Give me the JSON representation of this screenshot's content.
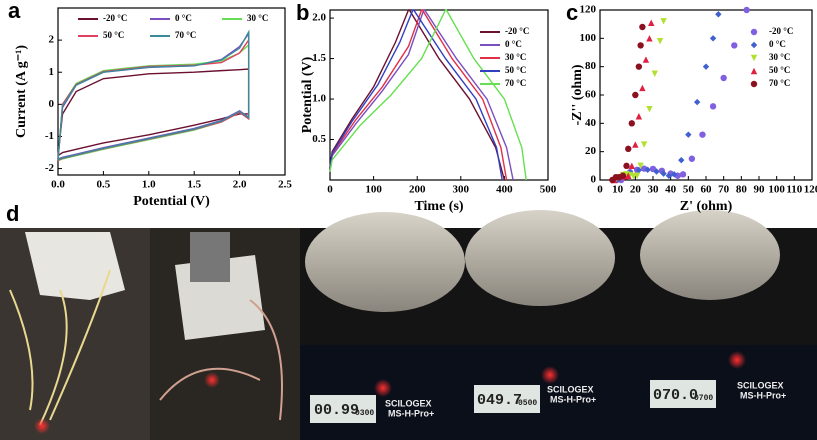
{
  "chart_data": [
    {
      "type": "line",
      "label": "a",
      "xlabel": "Potential (V)",
      "ylabel": "Current (A g⁻¹)",
      "xlim": [
        0,
        2.5
      ],
      "ylim": [
        -2.2,
        3
      ],
      "xticks": [
        {
          "value": 0,
          "label": "0.0"
        },
        0.5,
        {
          "value": 1,
          "label": "1.0"
        },
        1.5,
        {
          "value": 2,
          "label": "2.0"
        },
        2.5
      ],
      "yticks": [
        -2,
        -1,
        0,
        1,
        2
      ],
      "legend": "top",
      "legend_columns": 3,
      "x": [
        0,
        0.05,
        0.2,
        0.5,
        1.0,
        1.5,
        1.8,
        2.0,
        2.1,
        2.1,
        2.0,
        1.8,
        1.5,
        1.0,
        0.5,
        0.2,
        0.05,
        0
      ],
      "series": [
        {
          "name": "-20 °C",
          "color": "#6b1030",
          "values": [
            -1.6,
            -0.3,
            0.4,
            0.8,
            0.95,
            1.0,
            1.05,
            1.08,
            1.1,
            -0.3,
            -0.3,
            -0.45,
            -0.65,
            -0.95,
            -1.2,
            -1.4,
            -1.5,
            -1.6
          ]
        },
        {
          "name": "0 °C",
          "color": "#7a4fc0",
          "values": [
            -1.7,
            -0.1,
            0.6,
            1.0,
            1.15,
            1.2,
            1.4,
            1.8,
            2.2,
            -0.4,
            -0.2,
            -0.5,
            -0.75,
            -1.05,
            -1.35,
            -1.55,
            -1.65,
            -1.7
          ]
        },
        {
          "name": "30 °C",
          "color": "#66dd55",
          "values": [
            -1.75,
            0.0,
            0.65,
            1.05,
            1.2,
            1.25,
            1.35,
            1.6,
            1.85,
            -0.45,
            -0.25,
            -0.55,
            -0.8,
            -1.1,
            -1.4,
            -1.6,
            -1.7,
            -1.75
          ]
        },
        {
          "name": "50 °C",
          "color": "#e04060",
          "values": [
            -1.75,
            0.0,
            0.62,
            1.02,
            1.18,
            1.22,
            1.3,
            1.6,
            2.0,
            -0.45,
            -0.25,
            -0.55,
            -0.78,
            -1.08,
            -1.38,
            -1.58,
            -1.68,
            -1.75
          ]
        },
        {
          "name": "70 °C",
          "color": "#3a8a9a",
          "values": [
            -1.72,
            -0.05,
            0.6,
            1.0,
            1.16,
            1.2,
            1.38,
            1.75,
            2.25,
            -0.42,
            -0.22,
            -0.52,
            -0.77,
            -1.07,
            -1.37,
            -1.57,
            -1.67,
            -1.72
          ]
        }
      ]
    },
    {
      "type": "line",
      "label": "b",
      "xlabel": "Time (s)",
      "ylabel": "Potential (V)",
      "xlim": [
        0,
        500
      ],
      "ylim": [
        0,
        2.1
      ],
      "xticks": [
        0,
        100,
        200,
        300,
        400,
        500
      ],
      "yticks": [
        0.5,
        {
          "value": 1,
          "label": "1.0"
        },
        1.5,
        {
          "value": 2,
          "label": "2.0"
        }
      ],
      "legend": "right",
      "legend_columns": 1,
      "series": [
        {
          "name": "-20 °C",
          "color": "#6b1030",
          "x": [
            0,
            5,
            50,
            100,
            150,
            180,
            182,
            250,
            320,
            380,
            400
          ],
          "values": [
            0.15,
            0.35,
            0.75,
            1.15,
            1.7,
            2.1,
            2.1,
            1.5,
            1.0,
            0.4,
            0
          ]
        },
        {
          "name": "0 °C",
          "color": "#7a4fc0",
          "x": [
            0,
            5,
            60,
            120,
            180,
            215,
            217,
            290,
            360,
            405,
            420
          ],
          "values": [
            0.15,
            0.3,
            0.7,
            1.1,
            1.55,
            2.1,
            2.1,
            1.5,
            1.0,
            0.4,
            0
          ]
        },
        {
          "name": "30 °C",
          "color": "#e03048",
          "x": [
            0,
            5,
            60,
            120,
            180,
            210,
            212,
            280,
            350,
            392,
            405
          ],
          "values": [
            0.15,
            0.32,
            0.75,
            1.15,
            1.65,
            2.1,
            2.1,
            1.5,
            1.0,
            0.4,
            0
          ]
        },
        {
          "name": "50 °C",
          "color": "#3040c0",
          "x": [
            0,
            5,
            50,
            110,
            160,
            190,
            192,
            265,
            335,
            382,
            395
          ],
          "values": [
            0.15,
            0.33,
            0.72,
            1.18,
            1.7,
            2.1,
            2.1,
            1.5,
            1.0,
            0.4,
            0
          ]
        },
        {
          "name": "70 °C",
          "color": "#66e050",
          "x": [
            0,
            5,
            70,
            140,
            210,
            265,
            267,
            330,
            400,
            440,
            450
          ],
          "values": [
            0.1,
            0.25,
            0.68,
            1.05,
            1.5,
            2.1,
            2.1,
            1.5,
            1.0,
            0.4,
            0
          ]
        }
      ]
    },
    {
      "type": "scatter",
      "label": "c",
      "xlabel": "Z' (ohm)",
      "ylabel": "-Z'' (ohm)",
      "xlim": [
        0,
        120
      ],
      "ylim": [
        0,
        120
      ],
      "xticks": [
        0,
        10,
        20,
        30,
        40,
        50,
        60,
        70,
        80,
        90,
        100,
        110,
        120
      ],
      "yticks": [
        0,
        20,
        40,
        60,
        80,
        100,
        120
      ],
      "legend": "right",
      "legend_columns": 1,
      "series": [
        {
          "name": "-20 °C",
          "color": "#8060e0",
          "marker": "circle",
          "x": [
            12,
            14,
            17,
            21,
            25,
            30,
            35,
            40,
            44,
            47,
            52,
            58,
            64,
            70,
            76,
            83
          ],
          "values": [
            0,
            3,
            5.5,
            7.2,
            8,
            7.8,
            6.5,
            4.5,
            3,
            4,
            15,
            32,
            52,
            72,
            95,
            120
          ]
        },
        {
          "name": "0 °C",
          "color": "#4060d0",
          "marker": "diamond",
          "x": [
            10,
            13,
            17,
            22,
            27,
            32,
            36,
            39,
            42,
            46,
            50,
            55,
            60,
            64,
            67
          ],
          "values": [
            0,
            3,
            5.5,
            7,
            7.2,
            6,
            4.5,
            3,
            4,
            14,
            32,
            55,
            80,
            100,
            117
          ]
        },
        {
          "name": "30 °C",
          "color": "#b0e030",
          "marker": "triangle-down",
          "x": [
            9,
            11,
            13,
            15,
            17,
            19,
            21,
            23,
            25,
            28,
            31,
            34,
            36
          ],
          "values": [
            0,
            2,
            3.5,
            4,
            3.5,
            2.5,
            3,
            10,
            25,
            50,
            75,
            98,
            112
          ]
        },
        {
          "name": "50 °C",
          "color": "#e02040",
          "marker": "triangle-up",
          "x": [
            8,
            10,
            12,
            14,
            16,
            18,
            20,
            22,
            24,
            26,
            28,
            29
          ],
          "values": [
            0,
            2,
            3,
            2.5,
            3,
            10,
            25,
            45,
            65,
            85,
            100,
            111
          ]
        },
        {
          "name": "70 °C",
          "color": "#8b1020",
          "marker": "circle",
          "x": [
            7,
            9,
            11,
            13,
            15,
            16,
            18,
            20,
            22,
            23,
            24
          ],
          "values": [
            0,
            2,
            2,
            3,
            10,
            22,
            40,
            60,
            80,
            95,
            108
          ]
        }
      ]
    }
  ],
  "panel_d": {
    "label": "d",
    "photos": [
      {
        "display": "00.99",
        "setting": "0300",
        "brand": "SCILOGEX",
        "model": "MS-H-Pro+"
      },
      {
        "display": "049.7",
        "setting": "0500",
        "brand": "SCILOGEX",
        "model": "MS-H-Pro+"
      },
      {
        "display": "070.0",
        "setting": "0700",
        "brand": "SCILOGEX",
        "model": "MS-H-Pro+"
      }
    ]
  }
}
